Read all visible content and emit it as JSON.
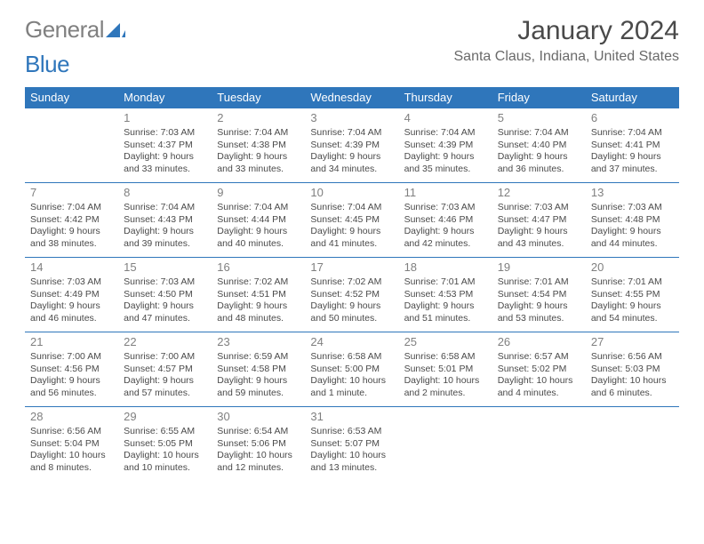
{
  "logo": {
    "word1": "General",
    "word2": "Blue"
  },
  "title": "January 2024",
  "location": "Santa Claus, Indiana, United States",
  "colors": {
    "header_bg": "#2f76bb",
    "header_text": "#ffffff",
    "row_divider": "#2f76bb",
    "text": "#4a4a4a",
    "daynum": "#808080",
    "logo_gray": "#808080",
    "logo_blue": "#2f76bb",
    "page_bg": "#ffffff"
  },
  "day_headers": [
    "Sunday",
    "Monday",
    "Tuesday",
    "Wednesday",
    "Thursday",
    "Friday",
    "Saturday"
  ],
  "weeks": [
    [
      null,
      {
        "n": "1",
        "sunrise": "7:03 AM",
        "sunset": "4:37 PM",
        "daylight": "9 hours and 33 minutes."
      },
      {
        "n": "2",
        "sunrise": "7:04 AM",
        "sunset": "4:38 PM",
        "daylight": "9 hours and 33 minutes."
      },
      {
        "n": "3",
        "sunrise": "7:04 AM",
        "sunset": "4:39 PM",
        "daylight": "9 hours and 34 minutes."
      },
      {
        "n": "4",
        "sunrise": "7:04 AM",
        "sunset": "4:39 PM",
        "daylight": "9 hours and 35 minutes."
      },
      {
        "n": "5",
        "sunrise": "7:04 AM",
        "sunset": "4:40 PM",
        "daylight": "9 hours and 36 minutes."
      },
      {
        "n": "6",
        "sunrise": "7:04 AM",
        "sunset": "4:41 PM",
        "daylight": "9 hours and 37 minutes."
      }
    ],
    [
      {
        "n": "7",
        "sunrise": "7:04 AM",
        "sunset": "4:42 PM",
        "daylight": "9 hours and 38 minutes."
      },
      {
        "n": "8",
        "sunrise": "7:04 AM",
        "sunset": "4:43 PM",
        "daylight": "9 hours and 39 minutes."
      },
      {
        "n": "9",
        "sunrise": "7:04 AM",
        "sunset": "4:44 PM",
        "daylight": "9 hours and 40 minutes."
      },
      {
        "n": "10",
        "sunrise": "7:04 AM",
        "sunset": "4:45 PM",
        "daylight": "9 hours and 41 minutes."
      },
      {
        "n": "11",
        "sunrise": "7:03 AM",
        "sunset": "4:46 PM",
        "daylight": "9 hours and 42 minutes."
      },
      {
        "n": "12",
        "sunrise": "7:03 AM",
        "sunset": "4:47 PM",
        "daylight": "9 hours and 43 minutes."
      },
      {
        "n": "13",
        "sunrise": "7:03 AM",
        "sunset": "4:48 PM",
        "daylight": "9 hours and 44 minutes."
      }
    ],
    [
      {
        "n": "14",
        "sunrise": "7:03 AM",
        "sunset": "4:49 PM",
        "daylight": "9 hours and 46 minutes."
      },
      {
        "n": "15",
        "sunrise": "7:03 AM",
        "sunset": "4:50 PM",
        "daylight": "9 hours and 47 minutes."
      },
      {
        "n": "16",
        "sunrise": "7:02 AM",
        "sunset": "4:51 PM",
        "daylight": "9 hours and 48 minutes."
      },
      {
        "n": "17",
        "sunrise": "7:02 AM",
        "sunset": "4:52 PM",
        "daylight": "9 hours and 50 minutes."
      },
      {
        "n": "18",
        "sunrise": "7:01 AM",
        "sunset": "4:53 PM",
        "daylight": "9 hours and 51 minutes."
      },
      {
        "n": "19",
        "sunrise": "7:01 AM",
        "sunset": "4:54 PM",
        "daylight": "9 hours and 53 minutes."
      },
      {
        "n": "20",
        "sunrise": "7:01 AM",
        "sunset": "4:55 PM",
        "daylight": "9 hours and 54 minutes."
      }
    ],
    [
      {
        "n": "21",
        "sunrise": "7:00 AM",
        "sunset": "4:56 PM",
        "daylight": "9 hours and 56 minutes."
      },
      {
        "n": "22",
        "sunrise": "7:00 AM",
        "sunset": "4:57 PM",
        "daylight": "9 hours and 57 minutes."
      },
      {
        "n": "23",
        "sunrise": "6:59 AM",
        "sunset": "4:58 PM",
        "daylight": "9 hours and 59 minutes."
      },
      {
        "n": "24",
        "sunrise": "6:58 AM",
        "sunset": "5:00 PM",
        "daylight": "10 hours and 1 minute."
      },
      {
        "n": "25",
        "sunrise": "6:58 AM",
        "sunset": "5:01 PM",
        "daylight": "10 hours and 2 minutes."
      },
      {
        "n": "26",
        "sunrise": "6:57 AM",
        "sunset": "5:02 PM",
        "daylight": "10 hours and 4 minutes."
      },
      {
        "n": "27",
        "sunrise": "6:56 AM",
        "sunset": "5:03 PM",
        "daylight": "10 hours and 6 minutes."
      }
    ],
    [
      {
        "n": "28",
        "sunrise": "6:56 AM",
        "sunset": "5:04 PM",
        "daylight": "10 hours and 8 minutes."
      },
      {
        "n": "29",
        "sunrise": "6:55 AM",
        "sunset": "5:05 PM",
        "daylight": "10 hours and 10 minutes."
      },
      {
        "n": "30",
        "sunrise": "6:54 AM",
        "sunset": "5:06 PM",
        "daylight": "10 hours and 12 minutes."
      },
      {
        "n": "31",
        "sunrise": "6:53 AM",
        "sunset": "5:07 PM",
        "daylight": "10 hours and 13 minutes."
      },
      null,
      null,
      null
    ]
  ],
  "labels": {
    "sunrise": "Sunrise:",
    "sunset": "Sunset:",
    "daylight": "Daylight:"
  }
}
